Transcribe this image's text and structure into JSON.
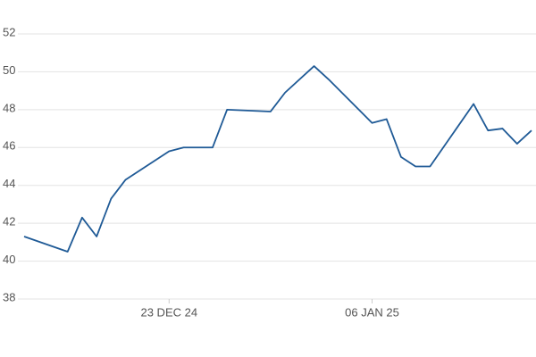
{
  "chart_data": {
    "type": "line",
    "x": [
      "2024-12-13",
      "2024-12-16",
      "2024-12-17",
      "2024-12-18",
      "2024-12-19",
      "2024-12-20",
      "2024-12-23",
      "2024-12-24",
      "2024-12-26",
      "2024-12-27",
      "2024-12-30",
      "2024-12-31",
      "2025-01-02",
      "2025-01-03",
      "2025-01-06",
      "2025-01-07",
      "2025-01-08",
      "2025-01-09",
      "2025-01-10",
      "2025-01-13",
      "2025-01-14",
      "2025-01-15",
      "2025-01-16",
      "2025-01-17"
    ],
    "series": [
      {
        "color": "#1f5a96",
        "values": [
          41.3,
          40.5,
          42.3,
          41.3,
          43.3,
          44.3,
          45.8,
          46.0,
          46.0,
          48.0,
          47.9,
          48.9,
          50.3,
          49.6,
          47.3,
          47.5,
          45.5,
          45.0,
          45.0,
          48.3,
          46.9,
          47.0,
          46.2,
          46.9
        ]
      }
    ],
    "xlim": [
      "2024-12-13",
      "2025-01-17"
    ],
    "xticks": [
      {
        "value": "2024-12-23",
        "label": "23 DEC 24"
      },
      {
        "value": "2025-01-06",
        "label": "06 JAN 25"
      }
    ],
    "ylim": [
      38,
      52
    ],
    "yticks": [
      38,
      40,
      42,
      44,
      46,
      48,
      50,
      52
    ],
    "grid": true
  }
}
